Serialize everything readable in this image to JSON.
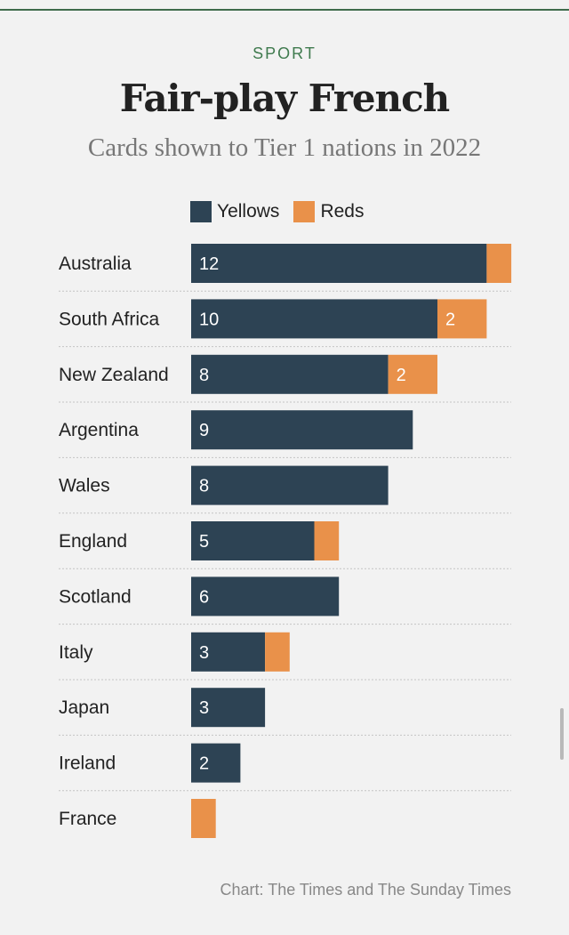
{
  "header": {
    "kicker": "SPORT",
    "title": "Fair-play French",
    "subtitle": "Cards shown to Tier 1 nations in 2022"
  },
  "legend": {
    "yellows": "Yellows",
    "reds": "Reds"
  },
  "colors": {
    "yellows": "#2d4354",
    "reds": "#e9914a",
    "rule": "#3f6b4b"
  },
  "source": "Chart: The Times and The Sunday Times",
  "chart_data": {
    "type": "bar",
    "orientation": "horizontal",
    "stacked": true,
    "categories": [
      "Australia",
      "South Africa",
      "New Zealand",
      "Argentina",
      "Wales",
      "England",
      "Scotland",
      "Italy",
      "Japan",
      "Ireland",
      "France"
    ],
    "series": [
      {
        "name": "Yellows",
        "values": [
          12,
          10,
          8,
          9,
          8,
          5,
          6,
          3,
          3,
          2,
          0
        ],
        "labels": [
          "12",
          "10",
          "8",
          "9",
          "8",
          "5",
          "6",
          "3",
          "3",
          "2",
          ""
        ]
      },
      {
        "name": "Reds",
        "values": [
          1,
          2,
          2,
          0,
          0,
          1,
          0,
          1,
          0,
          0,
          1
        ],
        "labels": [
          "",
          "2",
          "2",
          "",
          "",
          "",
          "",
          "",
          "",
          "",
          ""
        ]
      }
    ],
    "title": "Fair-play French",
    "subtitle": "Cards shown to Tier 1 nations in 2022",
    "legend": "top",
    "grid": false
  }
}
